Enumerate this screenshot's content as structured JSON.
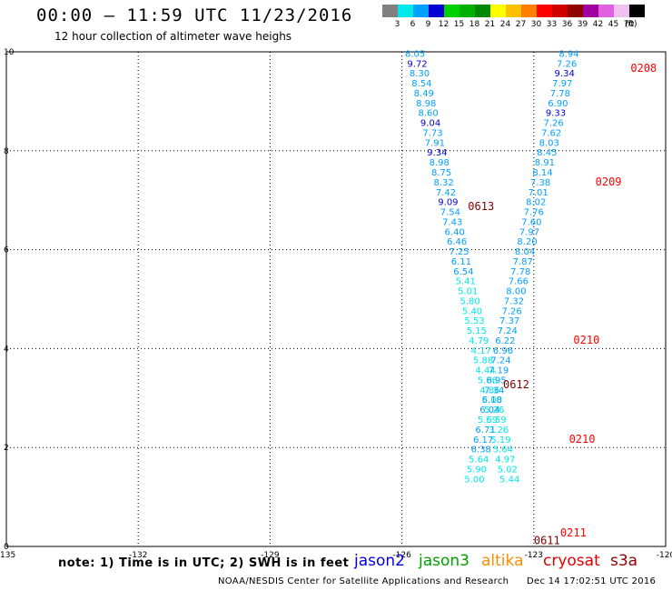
{
  "header": {
    "title": "00:00 — 11:59 UTC 11/23/2016",
    "subtitle": "12 hour collection of altimeter wave heighs"
  },
  "color_legend": {
    "unit": "(ft)",
    "bins": [
      {
        "label": "3",
        "color": "#808080"
      },
      {
        "label": "6",
        "color": "#00e8e8"
      },
      {
        "label": "9",
        "color": "#00a0ff"
      },
      {
        "label": "12",
        "color": "#0000d0"
      },
      {
        "label": "15",
        "color": "#00d000"
      },
      {
        "label": "18",
        "color": "#00b000"
      },
      {
        "label": "21",
        "color": "#008800"
      },
      {
        "label": "24",
        "color": "#ffff00"
      },
      {
        "label": "27",
        "color": "#ffc000"
      },
      {
        "label": "30",
        "color": "#ff8000"
      },
      {
        "label": "33",
        "color": "#ff0000"
      },
      {
        "label": "36",
        "color": "#d00000"
      },
      {
        "label": "39",
        "color": "#900000"
      },
      {
        "label": "42",
        "color": "#a000a0"
      },
      {
        "label": "45",
        "color": "#e060e0"
      },
      {
        "label": "70",
        "color": "#f0c0f0"
      },
      {
        "label": "",
        "color": "#000000"
      }
    ]
  },
  "chart_data": {
    "type": "scatter",
    "title": "00:00 — 11:59 UTC 11/23/2016",
    "subtitle": "12 hour collection of altimeter wave heighs",
    "xlabel": "",
    "ylabel": "",
    "xlim": [
      -135,
      -120
    ],
    "ylim": [
      0,
      10
    ],
    "x_ticks": [
      "-135",
      "-132",
      "-129",
      "-126",
      "-123",
      "-120"
    ],
    "y_ticks": [
      "0",
      "2",
      "4",
      "6",
      "8",
      "10"
    ],
    "grid": true,
    "tracks": [
      {
        "name": "track-a",
        "points": [
          {
            "x": -125.7,
            "y": 9.9,
            "v": "8.05"
          },
          {
            "x": -125.65,
            "y": 9.7,
            "v": "9.72"
          },
          {
            "x": -125.6,
            "y": 9.5,
            "v": "8.30"
          },
          {
            "x": -125.55,
            "y": 9.3,
            "v": "8.54"
          },
          {
            "x": -125.5,
            "y": 9.1,
            "v": "8.49"
          },
          {
            "x": -125.45,
            "y": 8.9,
            "v": "8.98"
          },
          {
            "x": -125.4,
            "y": 8.7,
            "v": "8.60"
          },
          {
            "x": -125.35,
            "y": 8.5,
            "v": "9.04"
          },
          {
            "x": -125.3,
            "y": 8.3,
            "v": "7.73"
          },
          {
            "x": -125.25,
            "y": 8.1,
            "v": "7.91"
          },
          {
            "x": -125.2,
            "y": 7.9,
            "v": "9.34"
          },
          {
            "x": -125.15,
            "y": 7.7,
            "v": "8.98"
          },
          {
            "x": -125.1,
            "y": 7.5,
            "v": "8.75"
          },
          {
            "x": -125.05,
            "y": 7.3,
            "v": "8.32"
          },
          {
            "x": -125.0,
            "y": 7.1,
            "v": "7.42"
          },
          {
            "x": -124.95,
            "y": 6.9,
            "v": "9.09"
          },
          {
            "x": -124.9,
            "y": 6.7,
            "v": "7.54"
          },
          {
            "x": -124.85,
            "y": 6.5,
            "v": "7.43"
          },
          {
            "x": -124.8,
            "y": 6.3,
            "v": "6.40"
          },
          {
            "x": -124.75,
            "y": 6.1,
            "v": "6.46"
          },
          {
            "x": -124.7,
            "y": 5.9,
            "v": "7.25"
          },
          {
            "x": -124.65,
            "y": 5.7,
            "v": "6.11"
          },
          {
            "x": -124.6,
            "y": 5.5,
            "v": "6.54"
          },
          {
            "x": -124.55,
            "y": 5.3,
            "v": "5.41"
          },
          {
            "x": -124.5,
            "y": 5.1,
            "v": "5.01"
          },
          {
            "x": -124.45,
            "y": 4.9,
            "v": "5.80"
          },
          {
            "x": -124.4,
            "y": 4.7,
            "v": "5.40"
          },
          {
            "x": -124.35,
            "y": 4.5,
            "v": "5.53"
          },
          {
            "x": -124.3,
            "y": 4.3,
            "v": "5.15"
          },
          {
            "x": -124.25,
            "y": 4.1,
            "v": "4.79"
          },
          {
            "x": -124.2,
            "y": 3.9,
            "v": "4.17"
          },
          {
            "x": -124.15,
            "y": 3.7,
            "v": "5.88"
          },
          {
            "x": -124.1,
            "y": 3.5,
            "v": "4.44"
          },
          {
            "x": -124.05,
            "y": 3.3,
            "v": "5.86"
          },
          {
            "x": -124.0,
            "y": 3.1,
            "v": "4.86"
          },
          {
            "x": -123.95,
            "y": 2.9,
            "v": "5.00"
          },
          {
            "x": -123.9,
            "y": 2.7,
            "v": "5.26"
          },
          {
            "x": -123.85,
            "y": 2.5,
            "v": "5.59"
          },
          {
            "x": -123.8,
            "y": 2.3,
            "v": "3.26"
          },
          {
            "x": -123.75,
            "y": 2.1,
            "v": "5.19"
          },
          {
            "x": -123.7,
            "y": 1.9,
            "v": "5.64"
          },
          {
            "x": -123.65,
            "y": 1.7,
            "v": "4.97"
          },
          {
            "x": -123.6,
            "y": 1.5,
            "v": "5.02"
          },
          {
            "x": -123.55,
            "y": 1.3,
            "v": "5.44"
          }
        ]
      },
      {
        "name": "track-b",
        "points": [
          {
            "x": -122.2,
            "y": 9.9,
            "v": "8.94"
          },
          {
            "x": -122.25,
            "y": 9.7,
            "v": "7.26"
          },
          {
            "x": -122.3,
            "y": 9.5,
            "v": "9.34"
          },
          {
            "x": -122.35,
            "y": 9.3,
            "v": "7.97"
          },
          {
            "x": -122.4,
            "y": 9.1,
            "v": "7.78"
          },
          {
            "x": -122.45,
            "y": 8.9,
            "v": "6.90"
          },
          {
            "x": -122.5,
            "y": 8.7,
            "v": "9.33"
          },
          {
            "x": -122.55,
            "y": 8.5,
            "v": "7.26"
          },
          {
            "x": -122.6,
            "y": 8.3,
            "v": "7.62"
          },
          {
            "x": -122.65,
            "y": 8.1,
            "v": "8.03"
          },
          {
            "x": -122.7,
            "y": 7.9,
            "v": "8.45"
          },
          {
            "x": -122.75,
            "y": 7.7,
            "v": "8.91"
          },
          {
            "x": -122.8,
            "y": 7.5,
            "v": "8.14"
          },
          {
            "x": -122.85,
            "y": 7.3,
            "v": "7.38"
          },
          {
            "x": -122.9,
            "y": 7.1,
            "v": "7.01"
          },
          {
            "x": -122.95,
            "y": 6.9,
            "v": "8.02"
          },
          {
            "x": -123.0,
            "y": 6.7,
            "v": "7.76"
          },
          {
            "x": -123.05,
            "y": 6.5,
            "v": "7.60"
          },
          {
            "x": -123.1,
            "y": 6.3,
            "v": "7.97"
          },
          {
            "x": -123.15,
            "y": 6.1,
            "v": "8.20"
          },
          {
            "x": -123.2,
            "y": 5.9,
            "v": "8.04"
          },
          {
            "x": -123.25,
            "y": 5.7,
            "v": "7.87"
          },
          {
            "x": -123.3,
            "y": 5.5,
            "v": "7.78"
          },
          {
            "x": -123.35,
            "y": 5.3,
            "v": "7.66"
          },
          {
            "x": -123.4,
            "y": 5.1,
            "v": "8.00"
          },
          {
            "x": -123.45,
            "y": 4.9,
            "v": "7.32"
          },
          {
            "x": -123.5,
            "y": 4.7,
            "v": "7.26"
          },
          {
            "x": -123.55,
            "y": 4.5,
            "v": "7.37"
          },
          {
            "x": -123.6,
            "y": 4.3,
            "v": "7.24"
          },
          {
            "x": -123.65,
            "y": 4.1,
            "v": "6.22"
          },
          {
            "x": -123.7,
            "y": 3.9,
            "v": "6.96"
          },
          {
            "x": -123.75,
            "y": 3.7,
            "v": "7.24"
          },
          {
            "x": -123.8,
            "y": 3.5,
            "v": "7.19"
          },
          {
            "x": -123.85,
            "y": 3.3,
            "v": "6.95"
          },
          {
            "x": -123.9,
            "y": 3.1,
            "v": "7.34"
          },
          {
            "x": -123.95,
            "y": 2.9,
            "v": "6.18"
          },
          {
            "x": -124.0,
            "y": 2.7,
            "v": "6.04"
          },
          {
            "x": -124.05,
            "y": 2.5,
            "v": "5.69"
          },
          {
            "x": -124.1,
            "y": 2.3,
            "v": "6.71"
          },
          {
            "x": -124.15,
            "y": 2.1,
            "v": "6.17"
          },
          {
            "x": -124.2,
            "y": 1.9,
            "v": "6.38"
          },
          {
            "x": -124.25,
            "y": 1.7,
            "v": "5.64"
          },
          {
            "x": -124.3,
            "y": 1.5,
            "v": "5.90"
          },
          {
            "x": -124.35,
            "y": 1.3,
            "v": "5.00"
          }
        ]
      }
    ],
    "time_labels": [
      {
        "text": "0208",
        "x": -120.5,
        "y": 9.6,
        "color": "#ff0000"
      },
      {
        "text": "0209",
        "x": -121.3,
        "y": 7.3,
        "color": "#ff0000"
      },
      {
        "text": "0613",
        "x": -124.2,
        "y": 6.8,
        "color": "#800000"
      },
      {
        "text": "0210",
        "x": -121.8,
        "y": 4.1,
        "color": "#ff0000"
      },
      {
        "text": "0612",
        "x": -123.4,
        "y": 3.2,
        "color": "#800000"
      },
      {
        "text": "0210",
        "x": -121.9,
        "y": 2.1,
        "color": "#ff0000"
      },
      {
        "text": "0211",
        "x": -122.1,
        "y": 0.2,
        "color": "#ff0000"
      },
      {
        "text": "0611",
        "x": -122.7,
        "y": 0.05,
        "color": "#800000"
      }
    ]
  },
  "footer": {
    "note": "note: 1) Time is in UTC; 2) SWH is in feet",
    "satellites": [
      {
        "label": "jason2",
        "color": "#0000e0"
      },
      {
        "label": "jason3",
        "color": "#00a000"
      },
      {
        "label": "altika",
        "color": "#ff8c00"
      },
      {
        "label": "cryosat",
        "color": "#e00000"
      },
      {
        "label": "s3a",
        "color": "#900000"
      }
    ],
    "credit": "NOAA/NESDIS Center for Satellite Applications and Research",
    "stamp": "Dec 14 17:02:51 UTC 2016"
  }
}
